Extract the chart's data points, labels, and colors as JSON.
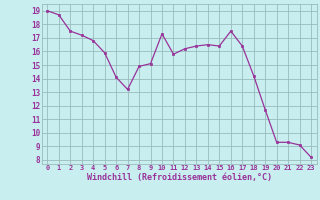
{
  "x": [
    0,
    1,
    2,
    3,
    4,
    5,
    6,
    7,
    8,
    9,
    10,
    11,
    12,
    13,
    14,
    15,
    16,
    17,
    18,
    19,
    20,
    21,
    22,
    23
  ],
  "y": [
    19.0,
    18.7,
    17.5,
    17.2,
    16.8,
    15.9,
    14.1,
    13.2,
    14.9,
    15.1,
    17.3,
    15.8,
    16.2,
    16.4,
    16.5,
    16.4,
    17.5,
    16.4,
    14.2,
    11.7,
    9.3,
    9.3,
    9.1,
    8.2
  ],
  "line_color": "#993399",
  "marker": "s",
  "marker_size": 2,
  "bg_color": "#c8eef0",
  "grid_color": "#99bbbb",
  "xlabel": "Windchill (Refroidissement éolien,°C)",
  "ytick_labels": [
    "8",
    "9",
    "10",
    "11",
    "12",
    "13",
    "14",
    "15",
    "16",
    "17",
    "18",
    "19"
  ],
  "ytick_vals": [
    8,
    9,
    10,
    11,
    12,
    13,
    14,
    15,
    16,
    17,
    18,
    19
  ],
  "xlim": [
    -0.5,
    23.5
  ],
  "ylim": [
    7.7,
    19.5
  ],
  "tick_color": "#993399",
  "xlabel_color": "#993399",
  "xlabel_fontsize": 6.0,
  "ytick_fontsize": 5.5,
  "xtick_fontsize": 5.0
}
